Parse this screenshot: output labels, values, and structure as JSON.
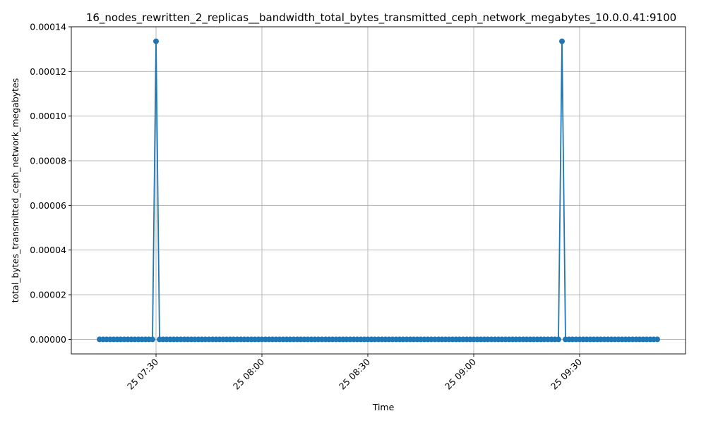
{
  "chart_data": {
    "type": "line",
    "title": "16_nodes_rewritten_2_replicas__bandwidth_total_bytes_transmitted_ceph_network_megabytes_10.0.0.41:9100",
    "xlabel": "Time",
    "ylabel": "total_bytes_transmitted_ceph_network_megabytes",
    "x_start": "2024-01-25T07:14:00",
    "x_end": "2024-01-25T09:52:00",
    "x_interval_minutes": 1,
    "xlim": [
      "2024-01-25T07:06:00",
      "2024-01-25T10:00:00"
    ],
    "ylim": [
      -6.5e-06,
      0.00014
    ],
    "x_ticks": [
      {
        "time": "2024-01-25T07:30:00",
        "label": "25 07:30"
      },
      {
        "time": "2024-01-25T08:00:00",
        "label": "25 08:00"
      },
      {
        "time": "2024-01-25T08:30:00",
        "label": "25 08:30"
      },
      {
        "time": "2024-01-25T09:00:00",
        "label": "25 09:00"
      },
      {
        "time": "2024-01-25T09:30:00",
        "label": "25 09:30"
      }
    ],
    "y_ticks": [
      {
        "value": 0.0,
        "label": "0.00000"
      },
      {
        "value": 2e-05,
        "label": "0.00002"
      },
      {
        "value": 4e-05,
        "label": "0.00004"
      },
      {
        "value": 6e-05,
        "label": "0.00006"
      },
      {
        "value": 8e-05,
        "label": "0.00008"
      },
      {
        "value": 0.0001,
        "label": "0.00010"
      },
      {
        "value": 0.00012,
        "label": "0.00012"
      },
      {
        "value": 0.00014,
        "label": "0.00014"
      }
    ],
    "grid": true,
    "series": [
      {
        "color": "#1f77b4",
        "baseline_value": 0.0,
        "peaks": [
          {
            "time": "2024-01-25T07:30:00",
            "value": 0.0001335
          },
          {
            "time": "2024-01-25T09:25:00",
            "value": 0.0001335
          }
        ]
      }
    ]
  }
}
